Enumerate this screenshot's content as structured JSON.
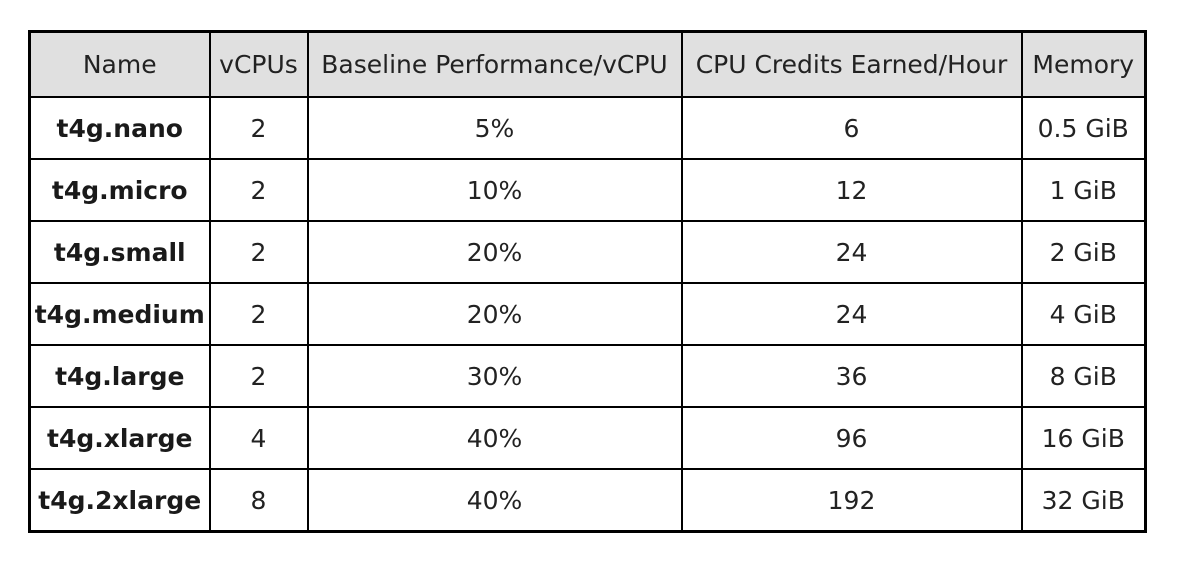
{
  "chart_data": {
    "type": "table",
    "columns": [
      "Name",
      "vCPUs",
      "Baseline Performance/vCPU",
      "CPU Credits Earned/Hour",
      "Memory"
    ],
    "rows": [
      [
        "t4g.nano",
        "2",
        "5%",
        "6",
        "0.5 GiB"
      ],
      [
        "t4g.micro",
        "2",
        "10%",
        "12",
        "1 GiB"
      ],
      [
        "t4g.small",
        "2",
        "20%",
        "24",
        "2 GiB"
      ],
      [
        "t4g.medium",
        "2",
        "20%",
        "24",
        "4 GiB"
      ],
      [
        "t4g.large",
        "2",
        "30%",
        "36",
        "8 GiB"
      ],
      [
        "t4g.xlarge",
        "4",
        "40%",
        "96",
        "16 GiB"
      ],
      [
        "t4g.2xlarge",
        "8",
        "40%",
        "192",
        "32 GiB"
      ]
    ]
  },
  "colors": {
    "header_bg": "#e0e0e0",
    "border": "#000000",
    "text": "#222222"
  }
}
